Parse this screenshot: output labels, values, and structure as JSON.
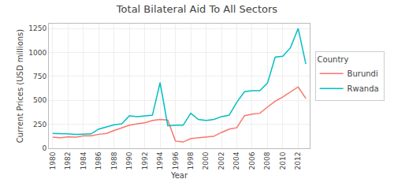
{
  "chart_data": {
    "type": "line",
    "title": "Total Bilateral Aid To All Sectors",
    "xlabel": "Year",
    "ylabel": "Current Prices (USD millions)",
    "x": [
      1980,
      1981,
      1982,
      1983,
      1984,
      1985,
      1986,
      1987,
      1988,
      1989,
      1990,
      1991,
      1992,
      1993,
      1994,
      1995,
      1996,
      1997,
      1998,
      1999,
      2000,
      2001,
      2002,
      2003,
      2004,
      2005,
      2006,
      2007,
      2008,
      2009,
      2010,
      2011,
      2012,
      2013
    ],
    "series": [
      {
        "name": "Burundi",
        "color": "#f8766d",
        "values": [
          115,
          110,
          120,
          115,
          130,
          130,
          145,
          155,
          185,
          210,
          240,
          255,
          265,
          290,
          300,
          295,
          75,
          65,
          100,
          110,
          115,
          125,
          165,
          200,
          215,
          340,
          355,
          365,
          430,
          490,
          535,
          590,
          640,
          520
        ]
      },
      {
        "name": "Rwanda",
        "color": "#00bfc4",
        "values": [
          155,
          155,
          150,
          145,
          145,
          150,
          200,
          220,
          245,
          255,
          340,
          330,
          340,
          345,
          685,
          235,
          240,
          240,
          365,
          300,
          290,
          300,
          330,
          345,
          480,
          590,
          600,
          600,
          680,
          950,
          960,
          1050,
          1250,
          880
        ]
      }
    ],
    "xlim": [
      1979.5,
      2013.5
    ],
    "ylim": [
      0,
      1300
    ],
    "xticks": [
      1980,
      1982,
      1984,
      1986,
      1988,
      1990,
      1992,
      1994,
      1996,
      1998,
      2000,
      2002,
      2004,
      2006,
      2008,
      2010,
      2012
    ],
    "yticks": [
      0,
      250,
      500,
      750,
      1000,
      1250
    ],
    "grid": true,
    "legend": "right",
    "legend_title": "Country"
  }
}
